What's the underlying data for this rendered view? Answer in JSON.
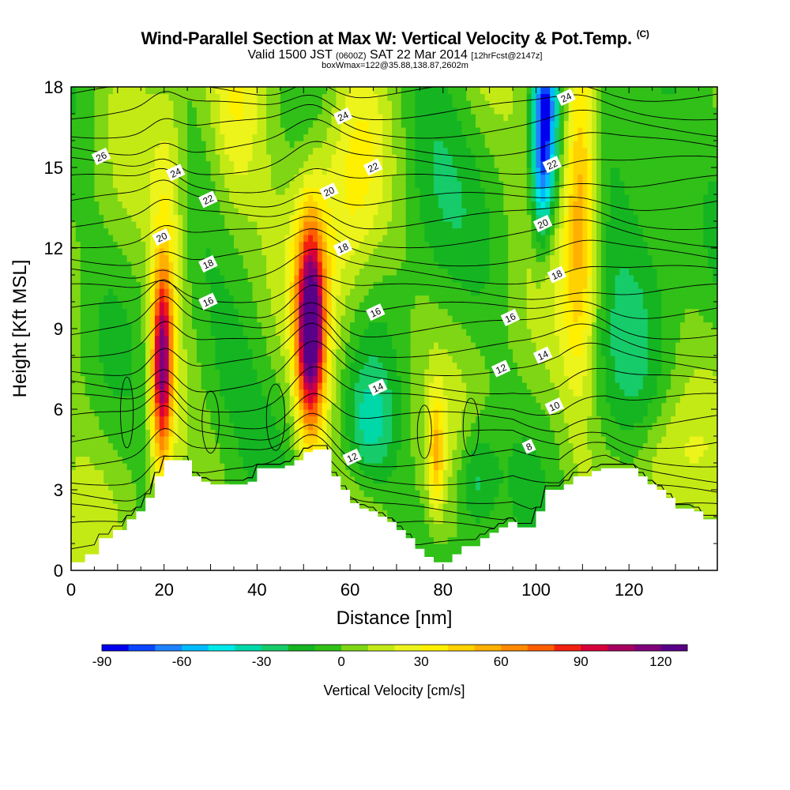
{
  "header": {
    "title": "Wind-Parallel Section at Max W: Vertical Velocity & Pot.Temp.",
    "copyright": "(C)",
    "valid_prefix": "Valid 1500 JST",
    "valid_zulu": "(0600Z)",
    "valid_date": "SAT 22 Mar 2014",
    "forecast": "[12hrFcst@2147z]",
    "box_info": "boxWmax=122@35.88,138.87,2602m"
  },
  "chart_data": {
    "type": "heatmap",
    "title": "Wind-Parallel Section at Max W: Vertical Velocity & Pot.Temp.",
    "xlabel": "Distance [nm]",
    "ylabel": "Height [Kft MSL]",
    "xlim": [
      0,
      139
    ],
    "ylim": [
      0,
      18
    ],
    "x_ticks": [
      "0",
      "20",
      "40",
      "60",
      "80",
      "100",
      "120"
    ],
    "y_ticks": [
      "0",
      "3",
      "6",
      "9",
      "12",
      "15",
      "18"
    ],
    "colorbar": {
      "label": "Vertical Velocity [cm/s]",
      "range": [
        -90,
        130
      ],
      "step": 10,
      "tick_labels": [
        "-90",
        "-60",
        "-30",
        "0",
        "30",
        "60",
        "90",
        "120"
      ],
      "colors": [
        "#0000ee",
        "#0a46ff",
        "#1e82ff",
        "#00bbff",
        "#00e8e8",
        "#00d8a8",
        "#16cc6a",
        "#15b522",
        "#30c018",
        "#7ed614",
        "#c4ea16",
        "#ecf41c",
        "#fff000",
        "#ffd200",
        "#ffb000",
        "#ff8a00",
        "#ff5e00",
        "#f22010",
        "#d8003a",
        "#a80060",
        "#80007a",
        "#580088"
      ]
    },
    "contour_field": "Potential Temperature",
    "contour_labels": [
      "8",
      "10",
      "12",
      "14",
      "16",
      "18",
      "20",
      "22",
      "24",
      "26"
    ],
    "vertical_velocity_maxima": [
      {
        "x": 19.5,
        "height": 7.8,
        "value": 105
      },
      {
        "x": 51.5,
        "height": 9.0,
        "value": 125
      },
      {
        "x": 109.5,
        "height": 14.0,
        "value": 60
      },
      {
        "x": 78.5,
        "height": 4.3,
        "value": 40
      }
    ],
    "vertical_velocity_minima": [
      {
        "x": 102,
        "height": 17.2,
        "value": -60
      },
      {
        "x": 64,
        "height": 5.3,
        "value": -30
      },
      {
        "x": 87,
        "height": 3.4,
        "value": -30
      }
    ],
    "terrain": {
      "x": [
        0,
        3,
        6,
        9,
        12,
        14,
        16,
        18,
        20,
        22,
        24,
        26,
        28,
        30,
        32,
        35,
        38,
        40,
        43,
        46,
        48,
        50,
        52,
        54,
        56,
        58,
        60,
        62,
        64,
        66,
        68,
        70,
        72,
        74,
        76,
        78,
        80,
        82,
        84,
        86,
        88,
        90,
        92,
        94,
        96,
        98,
        100,
        102,
        104,
        106,
        108,
        110,
        112,
        114,
        116,
        118,
        120,
        122,
        124,
        126,
        128,
        130,
        132,
        134,
        136,
        139
      ],
      "height": [
        0.3,
        0.6,
        1.2,
        1.5,
        1.9,
        2.2,
        2.7,
        3.5,
        4.1,
        4.1,
        4.1,
        3.5,
        3.3,
        3.2,
        3.2,
        3.2,
        3.3,
        3.8,
        3.8,
        3.9,
        4.1,
        4.4,
        4.5,
        4.5,
        3.5,
        3.0,
        2.5,
        2.3,
        2.2,
        2.0,
        1.8,
        1.5,
        1.2,
        0.8,
        0.5,
        0.3,
        0.3,
        0.6,
        0.9,
        0.9,
        1.2,
        1.4,
        1.6,
        1.8,
        1.6,
        1.6,
        2.2,
        3.0,
        3.0,
        3.2,
        3.5,
        3.5,
        3.7,
        3.8,
        3.8,
        3.8,
        3.8,
        3.5,
        3.2,
        3.0,
        2.7,
        2.3,
        2.3,
        2.2,
        1.9,
        1.9
      ]
    },
    "contour_label_positions": [
      {
        "label": "26",
        "x": 6.5,
        "y": 15.4
      },
      {
        "label": "24",
        "x": 22.5,
        "y": 14.8
      },
      {
        "label": "22",
        "x": 29.5,
        "y": 13.8
      },
      {
        "label": "20",
        "x": 19.5,
        "y": 12.4
      },
      {
        "label": "18",
        "x": 29.5,
        "y": 11.4
      },
      {
        "label": "16",
        "x": 29.5,
        "y": 10.0
      },
      {
        "label": "24",
        "x": 58.5,
        "y": 16.9
      },
      {
        "label": "22",
        "x": 65.0,
        "y": 15.0
      },
      {
        "label": "20",
        "x": 55.5,
        "y": 14.1
      },
      {
        "label": "18",
        "x": 58.5,
        "y": 12.0
      },
      {
        "label": "16",
        "x": 65.5,
        "y": 9.6
      },
      {
        "label": "14",
        "x": 66.0,
        "y": 6.8
      },
      {
        "label": "12",
        "x": 60.5,
        "y": 4.2
      },
      {
        "label": "16",
        "x": 94.5,
        "y": 9.4
      },
      {
        "label": "12",
        "x": 92.5,
        "y": 7.5
      },
      {
        "label": "14",
        "x": 101.5,
        "y": 8.0
      },
      {
        "label": "10",
        "x": 104.0,
        "y": 6.1
      },
      {
        "label": "8",
        "x": 98.5,
        "y": 4.6
      },
      {
        "label": "18",
        "x": 104.5,
        "y": 11.0
      },
      {
        "label": "20",
        "x": 101.5,
        "y": 12.9
      },
      {
        "label": "22",
        "x": 103.5,
        "y": 15.1
      },
      {
        "label": "24",
        "x": 106.5,
        "y": 17.6
      }
    ]
  }
}
